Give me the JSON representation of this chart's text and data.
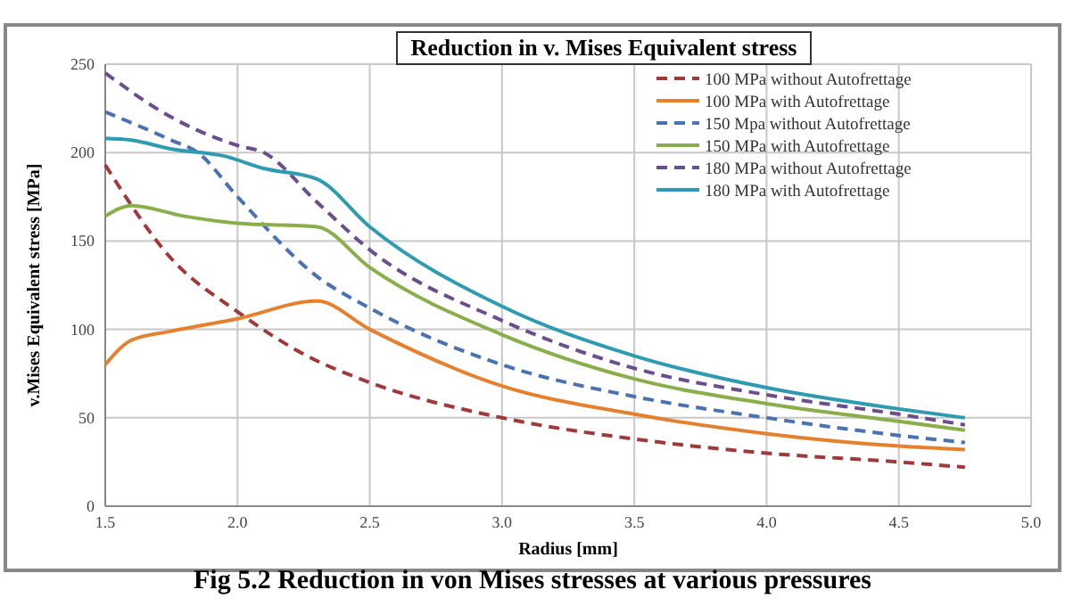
{
  "chart_data": {
    "type": "line",
    "title": "Reduction in v. Mises Equivalent stress",
    "xlabel": "Radius [mm]",
    "ylabel": "v.Mises Equivalent stress  [MPa]",
    "xlim": [
      1.5,
      5.0
    ],
    "xticks": [
      {
        "value": 1.5,
        "label": "1.5"
      },
      {
        "value": 2,
        "label": "2.0"
      },
      {
        "value": 2.5,
        "label": "2.5"
      },
      {
        "value": 3,
        "label": "3.0"
      },
      {
        "value": 3.5,
        "label": "3.5"
      },
      {
        "value": 4,
        "label": "4.0"
      },
      {
        "value": 4.5,
        "label": "4.5"
      },
      {
        "value": 5,
        "label": "5.0"
      }
    ],
    "ylim": [
      0,
      250
    ],
    "yticks": [
      0,
      50,
      100,
      150,
      200,
      250
    ],
    "grid": true,
    "legend": "top right",
    "marker": "none",
    "annotations": [
      "Fig 5.2 Reduction in von Mises stresses at various pressures"
    ],
    "series": [
      {
        "name": "100 MPa without Autofrettage",
        "color": "#a0393a",
        "line_style": "dashed",
        "x": [
          1.5,
          1.75,
          2.0,
          2.25,
          2.5,
          3.0,
          3.5,
          4.0,
          4.5,
          4.75
        ],
        "values": [
          193,
          140,
          110,
          86,
          70,
          50,
          38,
          30,
          25,
          22
        ]
      },
      {
        "name": "100 MPa with Autofrettage",
        "color": "#e5812e",
        "line_style": "solid",
        "x": [
          1.5,
          1.6,
          1.75,
          2.0,
          2.3,
          2.5,
          3.0,
          3.5,
          4.0,
          4.5,
          4.75
        ],
        "values": [
          80,
          94,
          99,
          106,
          116,
          100,
          68,
          52,
          41,
          34,
          32
        ]
      },
      {
        "name": "150 Mpa without Autofrettage",
        "color": "#4a72b0",
        "line_style": "dashed",
        "x": [
          1.5,
          1.75,
          1.85,
          2.0,
          2.3,
          2.5,
          3.0,
          3.5,
          4.0,
          4.5,
          4.75
        ],
        "values": [
          223,
          207,
          200,
          175,
          130,
          112,
          80,
          62,
          50,
          40,
          36
        ]
      },
      {
        "name": "150 MPa with Autofrettage",
        "color": "#8aae4a",
        "line_style": "solid",
        "x": [
          1.5,
          1.6,
          1.8,
          2.0,
          2.3,
          2.5,
          3.0,
          3.5,
          4.0,
          4.5,
          4.75
        ],
        "values": [
          164,
          170,
          164,
          160,
          158,
          135,
          97,
          72,
          58,
          48,
          43
        ]
      },
      {
        "name": "180 MPa without Autofrettage",
        "color": "#6a4f8e",
        "line_style": "dashed",
        "x": [
          1.5,
          1.75,
          2.0,
          2.1,
          2.3,
          2.5,
          3.0,
          3.5,
          4.0,
          4.5,
          4.75
        ],
        "values": [
          245,
          220,
          204,
          200,
          172,
          145,
          105,
          78,
          63,
          52,
          46
        ]
      },
      {
        "name": "180 MPa with Autofrettage",
        "color": "#2f9bb0",
        "line_style": "solid",
        "x": [
          1.5,
          1.6,
          1.75,
          1.95,
          2.1,
          2.3,
          2.5,
          3.0,
          3.5,
          4.0,
          4.5,
          4.75
        ],
        "values": [
          208,
          207,
          202,
          198,
          191,
          185,
          158,
          113,
          85,
          67,
          55,
          50
        ]
      }
    ]
  }
}
